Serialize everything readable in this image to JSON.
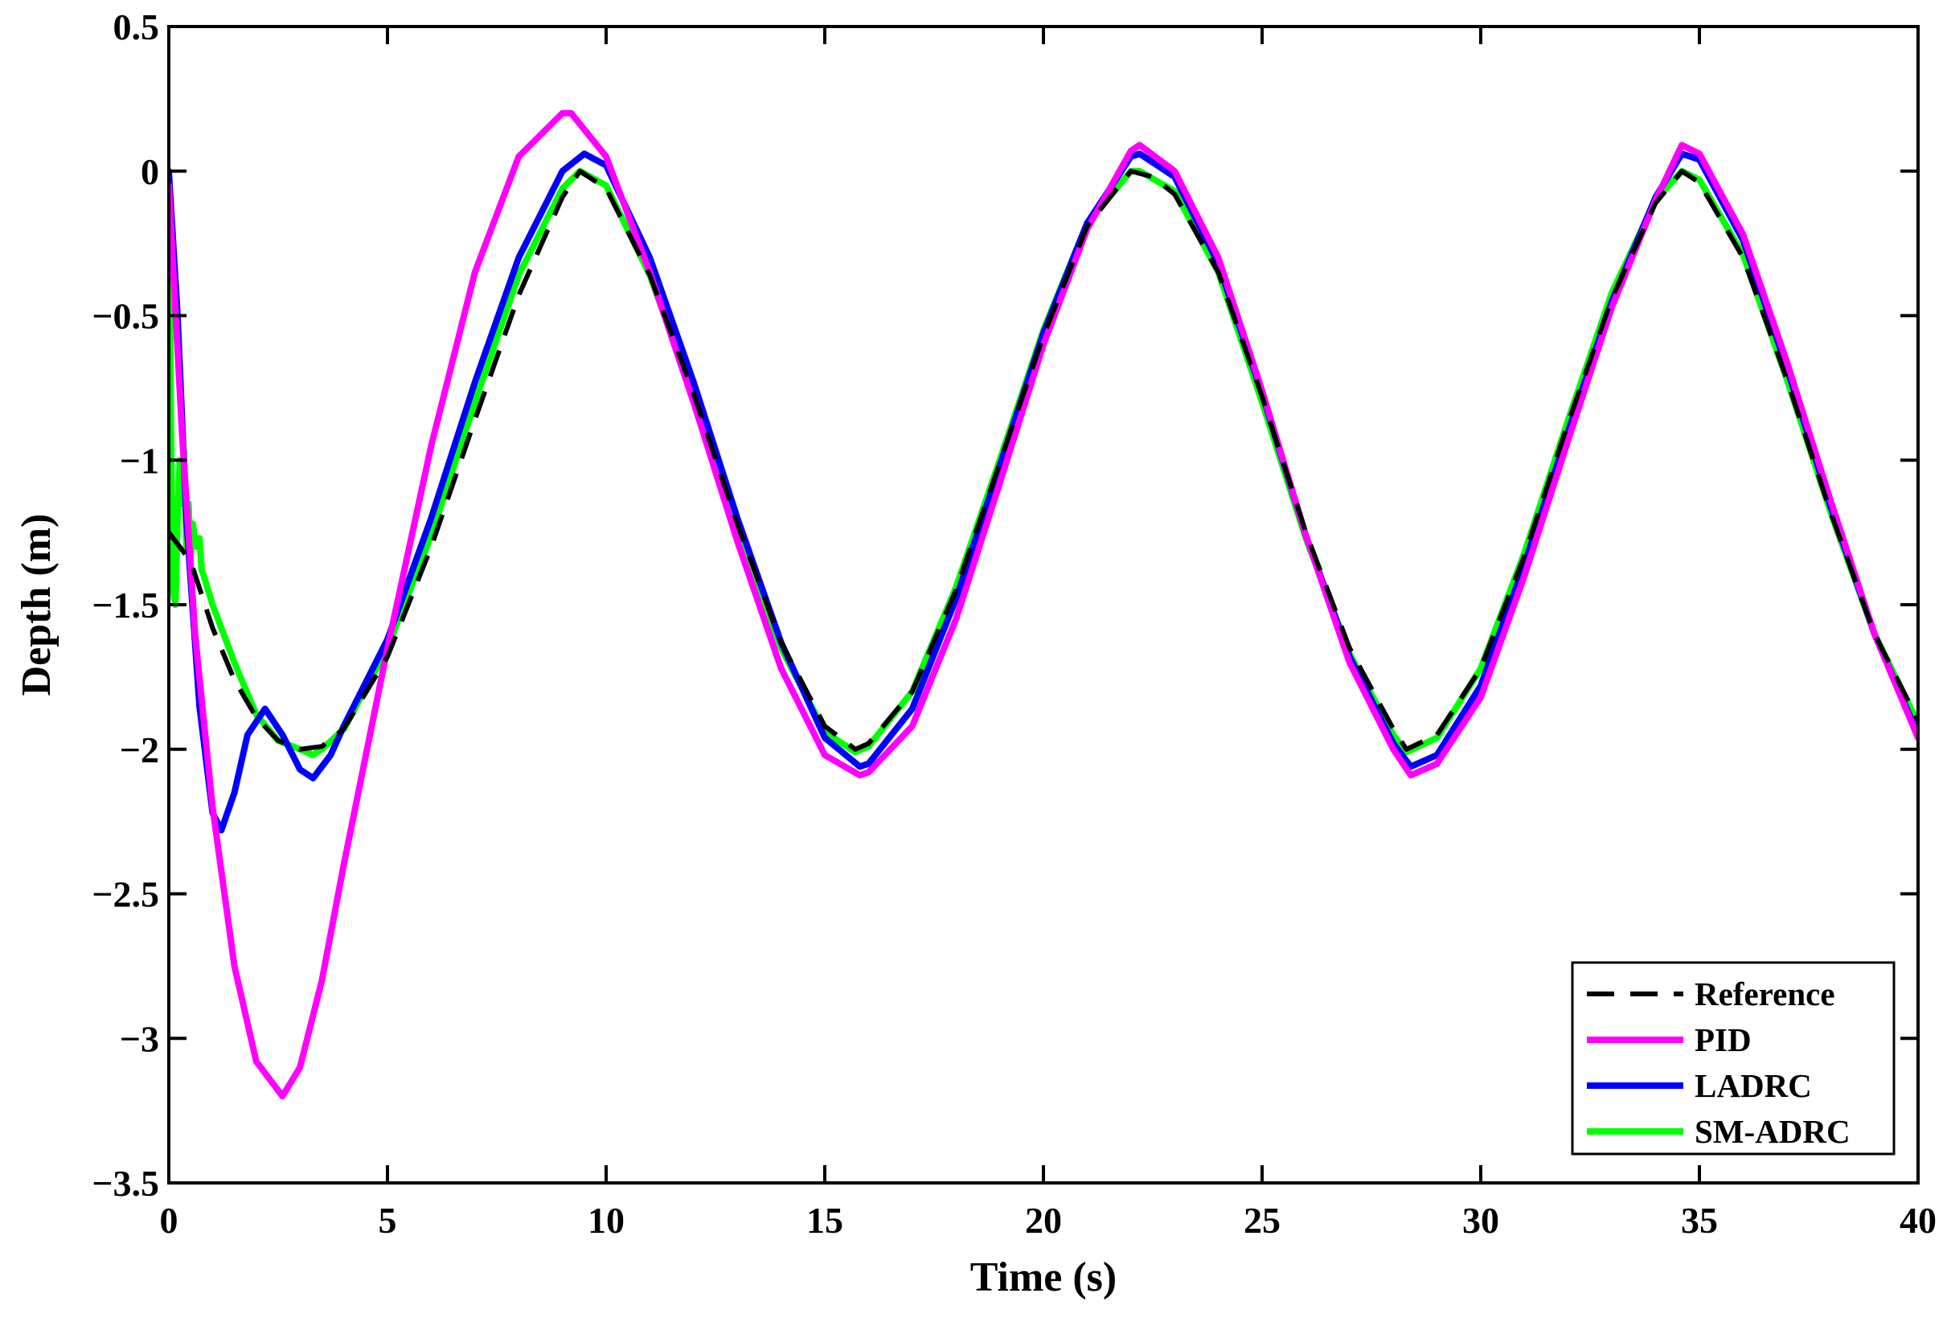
{
  "chart_data": {
    "type": "line",
    "title": "",
    "xlabel": "Time (s)",
    "ylabel": "Depth (m)",
    "xlim": [
      0,
      40
    ],
    "ylim": [
      -3.5,
      0.5
    ],
    "xticks": [
      0,
      5,
      10,
      15,
      20,
      25,
      30,
      35,
      40
    ],
    "xtick_labels": [
      "0",
      "5",
      "10",
      "15",
      "20",
      "25",
      "30",
      "35",
      "40"
    ],
    "yticks": [
      0.5,
      0,
      -0.5,
      -1,
      -1.5,
      -2,
      -2.5,
      -3,
      -3.5
    ],
    "ytick_labels": [
      "0.5",
      "0",
      "−0.5",
      "−1",
      "−1.5",
      "−2",
      "−2.5",
      "−3",
      "−3.5"
    ],
    "grid": false,
    "legend_position": "bottom-right",
    "series": [
      {
        "name": "Reference",
        "color": "#000000",
        "style": "dashed",
        "x": [
          0,
          0.5,
          1,
          1.5,
          2,
          2.5,
          3,
          3.5,
          4,
          5,
          6,
          7,
          8,
          9,
          9.4,
          10,
          11,
          12,
          13,
          14,
          15,
          15.7,
          16,
          17,
          18,
          19,
          20,
          21,
          22,
          22.5,
          23,
          24,
          25,
          26,
          27,
          28,
          28.3,
          29,
          30,
          31,
          32,
          33,
          34,
          34.6,
          35,
          36,
          37,
          38,
          39,
          40
        ],
        "y": [
          -1.25,
          -1.35,
          -1.58,
          -1.76,
          -1.89,
          -1.97,
          -2.0,
          -1.99,
          -1.93,
          -1.68,
          -1.3,
          -0.86,
          -0.43,
          -0.09,
          0.0,
          -0.06,
          -0.36,
          -0.77,
          -1.22,
          -1.63,
          -1.92,
          -2.0,
          -1.98,
          -1.8,
          -1.45,
          -1.01,
          -0.57,
          -0.19,
          0.0,
          -0.02,
          -0.08,
          -0.35,
          -0.78,
          -1.25,
          -1.65,
          -1.93,
          -2.0,
          -1.95,
          -1.72,
          -1.33,
          -0.87,
          -0.44,
          -0.11,
          0.0,
          -0.04,
          -0.3,
          -0.72,
          -1.18,
          -1.6,
          -1.9
        ]
      },
      {
        "name": "PID",
        "color": "#ff00ff",
        "style": "solid",
        "x": [
          0,
          0.3,
          0.6,
          1,
          1.5,
          2,
          2.6,
          3,
          3.5,
          4,
          5,
          6,
          7,
          8,
          9,
          9.2,
          10,
          11,
          12,
          13,
          14,
          15,
          15.8,
          16,
          17,
          18,
          19,
          20,
          21,
          22,
          22.2,
          23,
          24,
          25,
          26,
          27,
          28,
          28.4,
          29,
          30,
          31,
          32,
          33,
          34,
          34.6,
          35,
          36,
          37,
          38,
          39,
          40
        ],
        "y": [
          -0.05,
          -0.9,
          -1.6,
          -2.2,
          -2.75,
          -3.08,
          -3.2,
          -3.1,
          -2.8,
          -2.4,
          -1.65,
          -0.95,
          -0.35,
          0.05,
          0.2,
          0.2,
          0.05,
          -0.35,
          -0.8,
          -1.28,
          -1.72,
          -2.02,
          -2.09,
          -2.08,
          -1.92,
          -1.55,
          -1.08,
          -0.6,
          -0.2,
          0.07,
          0.09,
          0.0,
          -0.3,
          -0.76,
          -1.26,
          -1.7,
          -2.0,
          -2.09,
          -2.05,
          -1.82,
          -1.4,
          -0.93,
          -0.47,
          -0.1,
          0.09,
          0.06,
          -0.22,
          -0.66,
          -1.14,
          -1.6,
          -1.96
        ]
      },
      {
        "name": "LADRC",
        "color": "#0000ff",
        "style": "solid",
        "x": [
          0,
          0.2,
          0.4,
          0.7,
          1,
          1.2,
          1.5,
          1.8,
          2.2,
          2.6,
          3,
          3.3,
          3.7,
          4,
          5,
          6,
          7,
          8,
          9,
          9.5,
          10,
          11,
          12,
          13,
          14,
          15,
          15.8,
          16,
          17,
          18,
          19,
          20,
          21,
          22,
          22.2,
          23,
          24,
          25,
          26,
          27,
          28,
          28.4,
          29,
          30,
          31,
          32,
          33,
          34,
          34.6,
          35,
          36,
          37,
          38,
          39,
          40
        ],
        "y": [
          0.0,
          -0.5,
          -1.2,
          -1.85,
          -2.22,
          -2.28,
          -2.15,
          -1.95,
          -1.86,
          -1.95,
          -2.07,
          -2.1,
          -2.02,
          -1.92,
          -1.62,
          -1.2,
          -0.73,
          -0.3,
          0.0,
          0.06,
          0.02,
          -0.3,
          -0.73,
          -1.2,
          -1.63,
          -1.96,
          -2.06,
          -2.05,
          -1.86,
          -1.48,
          -1.02,
          -0.56,
          -0.18,
          0.05,
          0.06,
          -0.02,
          -0.32,
          -0.77,
          -1.26,
          -1.68,
          -1.98,
          -2.06,
          -2.02,
          -1.78,
          -1.36,
          -0.9,
          -0.45,
          -0.09,
          0.06,
          0.04,
          -0.24,
          -0.68,
          -1.16,
          -1.6,
          -1.95
        ]
      },
      {
        "name": "SM-ADRC",
        "color": "#00ff00",
        "style": "solid",
        "x": [
          0,
          0.05,
          0.1,
          0.15,
          0.2,
          0.25,
          0.3,
          0.35,
          0.4,
          0.45,
          0.5,
          0.55,
          0.6,
          0.65,
          0.7,
          0.75,
          0.8,
          0.9,
          1,
          1.5,
          2,
          2.5,
          3,
          3.3,
          3.5,
          4,
          5,
          6,
          7,
          8,
          9,
          9.4,
          10,
          11,
          12,
          13,
          14,
          15,
          15.7,
          16,
          17,
          18,
          19,
          20,
          21,
          22,
          22.2,
          23,
          24,
          25,
          26,
          27,
          28,
          28.3,
          29,
          30,
          31,
          32,
          33,
          34,
          34.6,
          35,
          36,
          37,
          38,
          39,
          40
        ],
        "y": [
          0.0,
          -0.9,
          -1.45,
          -1.5,
          -1.2,
          -1.0,
          -1.15,
          -0.97,
          -1.3,
          -1.15,
          -1.35,
          -1.22,
          -1.28,
          -1.3,
          -1.27,
          -1.38,
          -1.4,
          -1.45,
          -1.5,
          -1.7,
          -1.88,
          -1.97,
          -2.0,
          -2.02,
          -2.0,
          -1.93,
          -1.65,
          -1.26,
          -0.8,
          -0.36,
          -0.06,
          0.0,
          -0.05,
          -0.36,
          -0.78,
          -1.24,
          -1.65,
          -1.94,
          -2.01,
          -1.99,
          -1.8,
          -1.44,
          -1.0,
          -0.55,
          -0.18,
          0.0,
          0.0,
          -0.07,
          -0.35,
          -0.8,
          -1.27,
          -1.67,
          -1.95,
          -2.01,
          -1.96,
          -1.72,
          -1.32,
          -0.86,
          -0.42,
          -0.1,
          0.0,
          -0.03,
          -0.29,
          -0.72,
          -1.18,
          -1.6,
          -1.91
        ]
      }
    ]
  }
}
